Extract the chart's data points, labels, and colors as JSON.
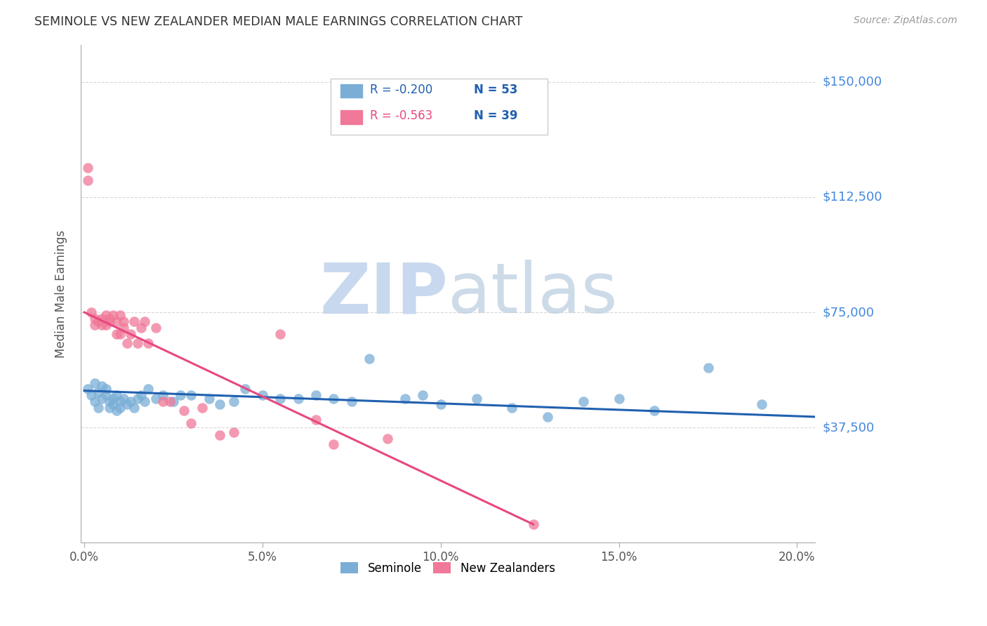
{
  "title": "SEMINOLE VS NEW ZEALANDER MEDIAN MALE EARNINGS CORRELATION CHART",
  "source": "Source: ZipAtlas.com",
  "ylabel": "Median Male Earnings",
  "xlabel_ticks": [
    "0.0%",
    "5.0%",
    "10.0%",
    "15.0%",
    "20.0%"
  ],
  "xlabel_vals": [
    0.0,
    0.05,
    0.1,
    0.15,
    0.2
  ],
  "ytick_labels": [
    "$37,500",
    "$75,000",
    "$112,500",
    "$150,000"
  ],
  "ytick_vals": [
    37500,
    75000,
    112500,
    150000
  ],
  "ylim": [
    0,
    162000
  ],
  "xlim": [
    -0.001,
    0.205
  ],
  "watermark_zip": "ZIP",
  "watermark_atlas": "atlas",
  "watermark_color": "#c8d8ee",
  "legend_r_blue": "R = -0.200",
  "legend_n_blue": "N = 53",
  "legend_r_pink": "R = -0.563",
  "legend_n_pink": "N = 39",
  "legend_label_blue": "Seminole",
  "legend_label_pink": "New Zealanders",
  "blue_color": "#7aaed6",
  "pink_color": "#f07898",
  "line_blue_color": "#2060b0",
  "line_pink_color": "#e84880",
  "title_color": "#333333",
  "ytick_color": "#4488dd",
  "grid_color": "#d8d8d8",
  "blue_scatter_x": [
    0.001,
    0.002,
    0.003,
    0.003,
    0.004,
    0.004,
    0.005,
    0.005,
    0.006,
    0.006,
    0.007,
    0.007,
    0.008,
    0.008,
    0.009,
    0.009,
    0.01,
    0.01,
    0.011,
    0.012,
    0.013,
    0.014,
    0.015,
    0.016,
    0.017,
    0.018,
    0.02,
    0.022,
    0.025,
    0.027,
    0.03,
    0.035,
    0.038,
    0.042,
    0.045,
    0.05,
    0.055,
    0.06,
    0.065,
    0.07,
    0.075,
    0.08,
    0.09,
    0.095,
    0.1,
    0.11,
    0.12,
    0.13,
    0.14,
    0.15,
    0.16,
    0.175,
    0.19
  ],
  "blue_scatter_y": [
    50000,
    48000,
    52000,
    46000,
    49000,
    44000,
    51000,
    47000,
    50000,
    48000,
    46000,
    44000,
    47000,
    45000,
    48000,
    43000,
    46000,
    44000,
    47000,
    45000,
    46000,
    44000,
    47000,
    48000,
    46000,
    50000,
    47000,
    48000,
    46000,
    48000,
    48000,
    47000,
    45000,
    46000,
    50000,
    48000,
    47000,
    47000,
    48000,
    47000,
    46000,
    60000,
    47000,
    48000,
    45000,
    47000,
    44000,
    41000,
    46000,
    47000,
    43000,
    57000,
    45000
  ],
  "pink_scatter_x": [
    0.001,
    0.001,
    0.002,
    0.003,
    0.003,
    0.004,
    0.005,
    0.005,
    0.006,
    0.006,
    0.007,
    0.007,
    0.008,
    0.009,
    0.009,
    0.01,
    0.01,
    0.011,
    0.011,
    0.012,
    0.013,
    0.014,
    0.015,
    0.016,
    0.017,
    0.018,
    0.02,
    0.022,
    0.024,
    0.028,
    0.03,
    0.033,
    0.038,
    0.042,
    0.055,
    0.065,
    0.07,
    0.085,
    0.126
  ],
  "pink_scatter_y": [
    122000,
    118000,
    75000,
    73000,
    71000,
    72000,
    71000,
    73000,
    74000,
    71000,
    73000,
    72000,
    74000,
    68000,
    72000,
    68000,
    74000,
    70000,
    72000,
    65000,
    68000,
    72000,
    65000,
    70000,
    72000,
    65000,
    70000,
    46000,
    46000,
    43000,
    39000,
    44000,
    35000,
    36000,
    68000,
    40000,
    32000,
    34000,
    6000
  ],
  "blue_trend_x": [
    0.0,
    0.205
  ],
  "blue_trend_y": [
    49500,
    41000
  ],
  "pink_trend_x": [
    0.0,
    0.126
  ],
  "pink_trend_y": [
    75000,
    6000
  ]
}
